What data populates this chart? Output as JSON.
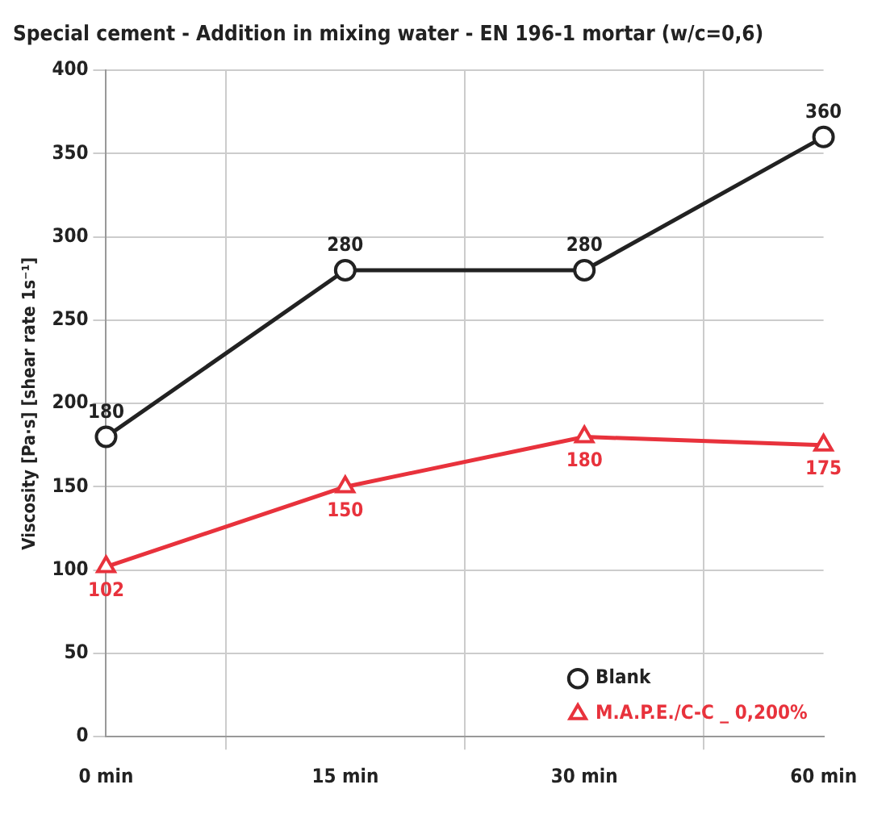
{
  "chart_data": {
    "type": "line",
    "title": "Special cement - Addition in mixing water - EN 196-1 mortar (w/c=0,6)",
    "ylabel": "Viscosity [Pa·s] [shear rate 1s⁻¹]",
    "categories": [
      "0 min",
      "15 min",
      "30 min",
      "60 min"
    ],
    "series": [
      {
        "name": "Blank",
        "color": "#222222",
        "marker": "circle",
        "values": [
          180,
          280,
          280,
          360
        ]
      },
      {
        "name": "M.A.P.E./C-C _ 0,200%",
        "color": "#e8323c",
        "marker": "triangle",
        "values": [
          102,
          150,
          180,
          175
        ]
      }
    ],
    "ylim": [
      0,
      400
    ],
    "yticks": [
      0,
      50,
      100,
      150,
      200,
      250,
      300,
      350,
      400
    ],
    "grid": true,
    "legend": "bottom right",
    "data_labels": true,
    "line_style": "solid"
  }
}
